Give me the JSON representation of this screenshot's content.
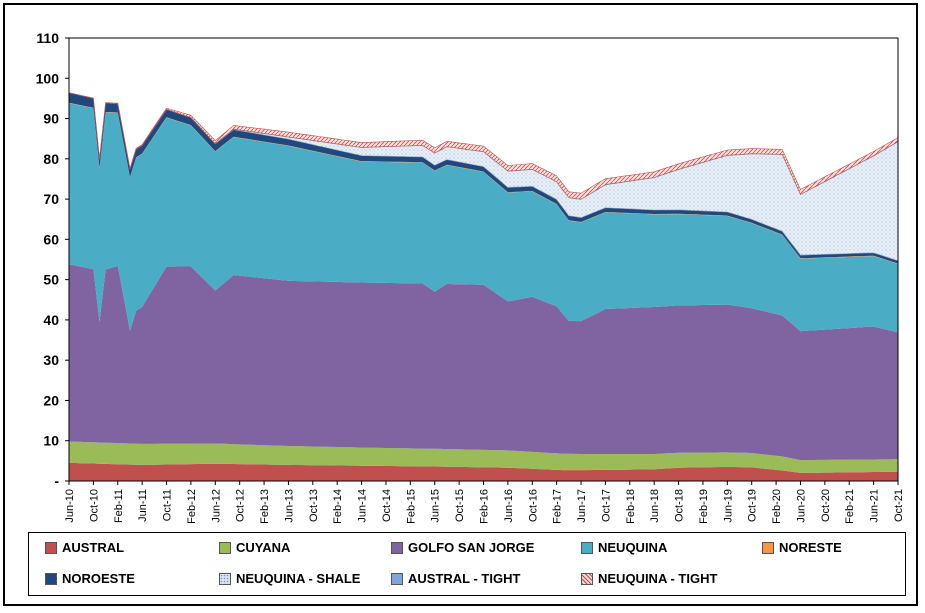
{
  "chart_data": {
    "type": "area",
    "stacked": true,
    "title": "",
    "xlabel": "",
    "ylabel": "",
    "ylim": [
      0,
      110
    ],
    "yticks": [
      "-",
      "10",
      "20",
      "30",
      "40",
      "50",
      "60",
      "70",
      "80",
      "90",
      "100",
      "110"
    ],
    "xticks": [
      "Jun-10",
      "Oct-10",
      "Feb-11",
      "Jun-11",
      "Oct-11",
      "Feb-12",
      "Jun-12",
      "Oct-12",
      "Feb-13",
      "Jun-13",
      "Oct-13",
      "Feb-14",
      "Jun-14",
      "Oct-14",
      "Feb-15",
      "Jun-15",
      "Oct-15",
      "Feb-16",
      "Jun-16",
      "Oct-16",
      "Feb-17",
      "Jun-17",
      "Oct-17",
      "Feb-18",
      "Jun-18",
      "Oct-18",
      "Feb-19",
      "Jun-19",
      "Oct-19",
      "Feb-20",
      "Jun-20",
      "Oct-20",
      "Feb-21",
      "Jun-21",
      "Oct-21"
    ],
    "grid": false,
    "legend_position": "bottom",
    "x_start": "2010-06",
    "x_end": "2021-10",
    "series": [
      {
        "name": "AUSTRAL",
        "color": "#c0504d",
        "fill": "solid",
        "points": [
          [
            "2010-06",
            4.5
          ],
          [
            "2011-06",
            4
          ],
          [
            "2012-06",
            4.3
          ],
          [
            "2013-06",
            4
          ],
          [
            "2014-06",
            3.8
          ],
          [
            "2015-06",
            3.6
          ],
          [
            "2016-06",
            3.3
          ],
          [
            "2017-03",
            2.7
          ],
          [
            "2017-06",
            2.7
          ],
          [
            "2018-06",
            2.9
          ],
          [
            "2018-10",
            3.3
          ],
          [
            "2019-06",
            3.5
          ],
          [
            "2019-10",
            3.4
          ],
          [
            "2020-03",
            2.6
          ],
          [
            "2020-06",
            2.0
          ],
          [
            "2021-10",
            2.3
          ]
        ]
      },
      {
        "name": "CUYANA",
        "color": "#9bbb59",
        "fill": "solid",
        "points": [
          [
            "2010-06",
            5.3
          ],
          [
            "2011-06",
            5.2
          ],
          [
            "2012-06",
            5.0
          ],
          [
            "2013-06",
            4.7
          ],
          [
            "2014-06",
            4.5
          ],
          [
            "2015-06",
            4.4
          ],
          [
            "2016-06",
            4.3
          ],
          [
            "2017-06",
            4.0
          ],
          [
            "2018-06",
            3.8
          ],
          [
            "2019-06",
            3.6
          ],
          [
            "2020-03",
            3.5
          ],
          [
            "2020-06",
            3.2
          ],
          [
            "2021-10",
            3.1
          ]
        ]
      },
      {
        "name": "GOLFO SAN JORGE",
        "color": "#8064a2",
        "fill": "solid",
        "points": [
          [
            "2010-06",
            44
          ],
          [
            "2010-10",
            43
          ],
          [
            "2010-11",
            30
          ],
          [
            "2010-12",
            43
          ],
          [
            "2011-02",
            44
          ],
          [
            "2011-04",
            28
          ],
          [
            "2011-05",
            33
          ],
          [
            "2011-06",
            34
          ],
          [
            "2011-10",
            44
          ],
          [
            "2012-02",
            44
          ],
          [
            "2012-06",
            38
          ],
          [
            "2012-09",
            42
          ],
          [
            "2013-06",
            41
          ],
          [
            "2014-06",
            41
          ],
          [
            "2015-04",
            41
          ],
          [
            "2015-06",
            39
          ],
          [
            "2015-08",
            41
          ],
          [
            "2016-02",
            41
          ],
          [
            "2016-06",
            37
          ],
          [
            "2016-10",
            38.5
          ],
          [
            "2017-02",
            36.5
          ],
          [
            "2017-04",
            33
          ],
          [
            "2017-06",
            33
          ],
          [
            "2017-10",
            36
          ],
          [
            "2018-06",
            36.5
          ],
          [
            "2019-06",
            36.7
          ],
          [
            "2020-03",
            35
          ],
          [
            "2020-06",
            32
          ],
          [
            "2021-06",
            33
          ],
          [
            "2021-10",
            31.5
          ]
        ]
      },
      {
        "name": "NEUQUINA",
        "color": "#4bacc6",
        "fill": "solid",
        "points": [
          [
            "2010-06",
            40
          ],
          [
            "2010-10",
            40
          ],
          [
            "2010-11",
            38
          ],
          [
            "2010-12",
            39
          ],
          [
            "2011-02",
            38
          ],
          [
            "2011-04",
            38
          ],
          [
            "2011-06",
            38
          ],
          [
            "2011-10",
            37
          ],
          [
            "2012-02",
            35
          ],
          [
            "2012-06",
            34.5
          ],
          [
            "2013-06",
            33.5
          ],
          [
            "2014-06",
            30
          ],
          [
            "2015-06",
            30
          ],
          [
            "2016-06",
            27
          ],
          [
            "2017-06",
            24.5
          ],
          [
            "2018-06",
            23
          ],
          [
            "2019-06",
            22
          ],
          [
            "2020-03",
            20
          ],
          [
            "2020-06",
            18
          ],
          [
            "2021-06",
            17.5
          ],
          [
            "2021-10",
            17
          ]
        ]
      },
      {
        "name": "NORESTE",
        "color": "#f79646",
        "fill": "solid",
        "points": [
          [
            "2010-06",
            0.1
          ],
          [
            "2021-10",
            0.1
          ]
        ]
      },
      {
        "name": "NOROESTE",
        "color": "#1f497d",
        "fill": "solid",
        "points": [
          [
            "2010-06",
            2.5
          ],
          [
            "2011-06",
            2.0
          ],
          [
            "2012-06",
            1.8
          ],
          [
            "2013-06",
            1.6
          ],
          [
            "2014-06",
            1.4
          ],
          [
            "2015-06",
            1.3
          ],
          [
            "2016-06",
            1.2
          ],
          [
            "2017-06",
            1.1
          ],
          [
            "2018-06",
            1.0
          ],
          [
            "2019-06",
            0.9
          ],
          [
            "2020-06",
            0.8
          ],
          [
            "2021-10",
            0.7
          ]
        ]
      },
      {
        "name": "NEUQUINA - SHALE",
        "color": "#dbe5f1",
        "fill": "dots",
        "points": [
          [
            "2010-06",
            0
          ],
          [
            "2012-06",
            0
          ],
          [
            "2013-06",
            0.5
          ],
          [
            "2014-06",
            2
          ],
          [
            "2015-06",
            3
          ],
          [
            "2016-06",
            4
          ],
          [
            "2017-06",
            4.5
          ],
          [
            "2018-06",
            8
          ],
          [
            "2019-06",
            14
          ],
          [
            "2020-03",
            19
          ],
          [
            "2020-06",
            15
          ],
          [
            "2021-06",
            24
          ],
          [
            "2021-10",
            29.5
          ]
        ]
      },
      {
        "name": "AUSTRAL - TIGHT",
        "color": "#7ea6d8",
        "fill": "solid",
        "points": [
          [
            "2010-06",
            0
          ],
          [
            "2021-10",
            0.1
          ]
        ]
      },
      {
        "name": "NEUQUINA - TIGHT",
        "color": "#f2dcdb",
        "fill": "hatch",
        "points": [
          [
            "2010-06",
            0
          ],
          [
            "2011-10",
            0.3
          ],
          [
            "2012-06",
            0.8
          ],
          [
            "2013-06",
            1.2
          ],
          [
            "2014-06",
            1.2
          ],
          [
            "2015-06",
            1.3
          ],
          [
            "2016-06",
            1.4
          ],
          [
            "2017-06",
            1.5
          ],
          [
            "2018-06",
            1.4
          ],
          [
            "2019-06",
            1.3
          ],
          [
            "2020-06",
            1.2
          ],
          [
            "2021-10",
            1.0
          ]
        ]
      }
    ]
  },
  "legend": {
    "items": [
      {
        "name": "AUSTRAL",
        "color": "#c0504d",
        "fill": "solid"
      },
      {
        "name": "CUYANA",
        "color": "#9bbb59",
        "fill": "solid"
      },
      {
        "name": "GOLFO SAN JORGE",
        "color": "#8064a2",
        "fill": "solid"
      },
      {
        "name": "NEUQUINA",
        "color": "#4bacc6",
        "fill": "solid"
      },
      {
        "name": "NORESTE",
        "color": "#f79646",
        "fill": "solid"
      },
      {
        "name": "NOROESTE",
        "color": "#1f497d",
        "fill": "solid"
      },
      {
        "name": "NEUQUINA - SHALE",
        "color": "#dbe5f1",
        "fill": "dots"
      },
      {
        "name": "AUSTRAL - TIGHT",
        "color": "#7ea6d8",
        "fill": "solid"
      },
      {
        "name": "NEUQUINA - TIGHT",
        "color": "#f2dcdb",
        "fill": "hatch"
      }
    ]
  }
}
